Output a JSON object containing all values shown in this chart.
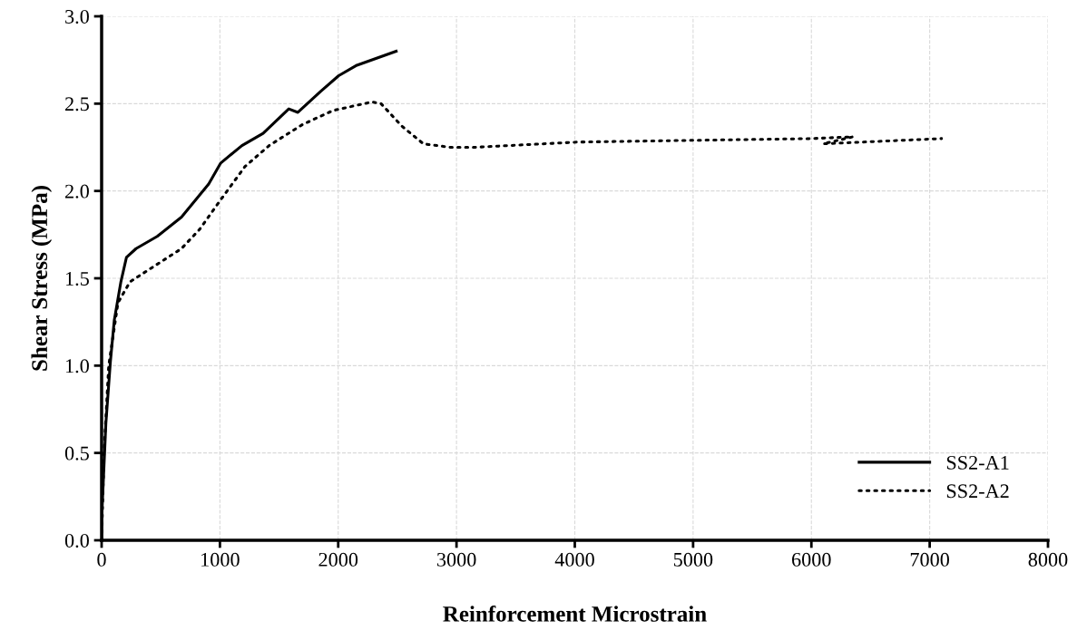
{
  "chart_data": {
    "type": "line",
    "xlabel": "Reinforcement Microstrain",
    "ylabel": "Shear Stress (MPa)",
    "xlim": [
      0,
      8000
    ],
    "xticks": [
      0,
      1000,
      2000,
      3000,
      4000,
      5000,
      6000,
      7000,
      8000
    ],
    "ylim": [
      0,
      3.0
    ],
    "yticks": [
      {
        "value": 0,
        "label": "0.0"
      },
      {
        "value": 0.5,
        "label": "0.5"
      },
      {
        "value": 1.0,
        "label": "1.0"
      },
      {
        "value": 1.5,
        "label": "1.5"
      },
      {
        "value": 2.0,
        "label": "2.0"
      },
      {
        "value": 2.5,
        "label": "2.5"
      },
      {
        "value": 3.0,
        "label": "3.0"
      }
    ],
    "grid": true,
    "legend": "bottom right",
    "marker": "none",
    "series": [
      {
        "name": "SS2-A1",
        "color": "#000000",
        "line_style": "solid",
        "x": [
          0,
          2,
          36,
          74,
          107,
          163,
          210,
          291,
          470,
          675,
          905,
          1007,
          1186,
          1365,
          1582,
          1659,
          1851,
          2004,
          2158,
          2490
        ],
        "values": [
          0,
          0.15,
          0.67,
          1.02,
          1.26,
          1.48,
          1.62,
          1.67,
          1.74,
          1.85,
          2.04,
          2.16,
          2.26,
          2.33,
          2.47,
          2.45,
          2.57,
          2.66,
          2.72,
          2.8
        ]
      },
      {
        "name": "SS2-A2",
        "color": "#000000",
        "line_style": "dotted",
        "x": [
          0,
          20,
          60,
          138,
          240,
          675,
          828,
          1007,
          1212,
          1416,
          1697,
          1953,
          2286,
          2362,
          2540,
          2720,
          2950,
          3155,
          4024,
          5000,
          6000,
          6350,
          6100,
          7100
        ],
        "values": [
          0,
          0.5,
          1.0,
          1.36,
          1.48,
          1.67,
          1.78,
          1.95,
          2.14,
          2.26,
          2.38,
          2.46,
          2.51,
          2.5,
          2.37,
          2.27,
          2.25,
          2.25,
          2.28,
          2.29,
          2.3,
          2.31,
          2.27,
          2.3
        ]
      }
    ]
  }
}
